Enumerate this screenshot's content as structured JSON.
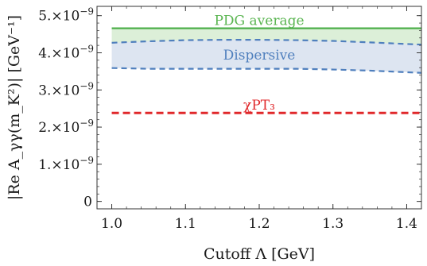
{
  "chart_data": {
    "type": "line",
    "title": "",
    "xlabel": "Cutoff Λ [GeV]",
    "ylabel": "|Re A_γγ(m_K²)| [GeV⁻¹]",
    "xlim": [
      0.98,
      1.42
    ],
    "ylim": [
      -2e-10,
      5.25e-09
    ],
    "exponent": -9,
    "xticks": [
      1.0,
      1.1,
      1.2,
      1.3,
      1.4
    ],
    "xtick_labels": [
      "1.0",
      "1.1",
      "1.2",
      "1.3",
      "1.4"
    ],
    "yticks": [
      0,
      1e-09,
      2e-09,
      3e-09,
      4e-09,
      5e-09
    ],
    "ytick_labels": [
      "0",
      "1.×10",
      "2.×10",
      "3.×10",
      "4.×10",
      "5.×10"
    ],
    "ytick_exponent_label": "−9",
    "grid": false,
    "bands": [
      {
        "name": "PDG average",
        "x": [
          1.0,
          1.42
        ],
        "lower": [
          4.2e-09,
          4.2e-09
        ],
        "upper": [
          4.66e-09,
          4.66e-09
        ],
        "color": "#4daf4a",
        "fill": "#dcefd8"
      },
      {
        "name": "Dispersive",
        "x": [
          1.0,
          1.05,
          1.1,
          1.15,
          1.2,
          1.25,
          1.3,
          1.35,
          1.42
        ],
        "lower": [
          3.59e-09,
          3.57e-09,
          3.57e-09,
          3.57e-09,
          3.57e-09,
          3.57e-09,
          3.55e-09,
          3.52e-09,
          3.46e-09
        ],
        "upper": [
          4.27e-09,
          4.31e-09,
          4.34e-09,
          4.35e-09,
          4.35e-09,
          4.34e-09,
          4.32e-09,
          4.28e-09,
          4.22e-09
        ],
        "color": "#4f7fbd",
        "fill": "#dde5f1"
      }
    ],
    "series": [
      {
        "name": "χPT₃",
        "x": [
          1.0,
          1.42
        ],
        "values": [
          2.38e-09,
          2.38e-09
        ],
        "color": "#e0282b",
        "style": "dashed"
      }
    ],
    "annotations": [
      {
        "text": "PDG average",
        "x": 1.2,
        "y": 4.88e-09,
        "color": "#5ab551"
      },
      {
        "text": "Dispersive",
        "x": 1.2,
        "y": 3.95e-09,
        "color": "#4f7fbd"
      },
      {
        "text": "χPT₃",
        "x": 1.2,
        "y": 2.6e-09,
        "color": "#e0282b"
      }
    ]
  }
}
